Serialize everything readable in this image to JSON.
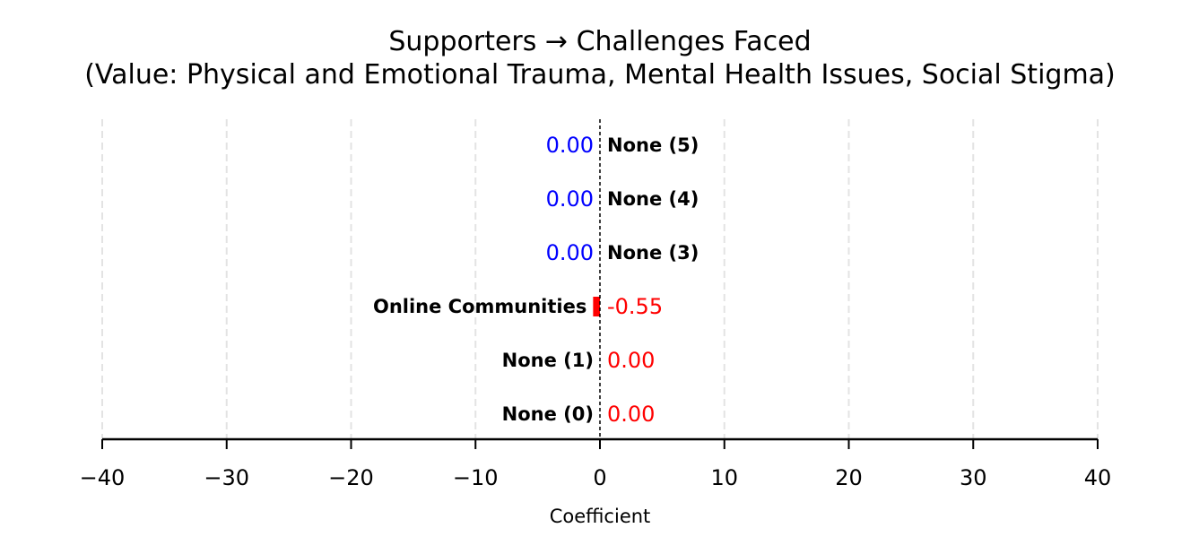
{
  "chart_data": {
    "type": "bar",
    "orientation": "horizontal",
    "title": "Supporters → Challenges Faced",
    "subtitle": "(Value: Physical and Emotional Trauma, Mental Health Issues, Social Stigma)",
    "xlabel": "Coefficient",
    "ylabel": "",
    "xlim": [
      -40,
      40
    ],
    "xticks": [
      -40,
      -30,
      -20,
      -10,
      0,
      10,
      20,
      30,
      40
    ],
    "xtick_labels": [
      "−40",
      "−30",
      "−20",
      "−10",
      "0",
      "10",
      "20",
      "30",
      "40"
    ],
    "grid": "vertical dashed",
    "categories": [
      "None (0)",
      "None (1)",
      "Online Communities",
      "None (3)",
      "None (4)",
      "None (5)"
    ],
    "values": [
      0.0,
      0.0,
      -0.55,
      0.0,
      0.0,
      0.0
    ],
    "value_labels": [
      "0.00",
      "0.00",
      "-0.55",
      "0.00",
      "0.00",
      "0.00"
    ],
    "value_colors": [
      "#ff0000",
      "#ff0000",
      "#ff0000",
      "#0000ff",
      "#0000ff",
      "#0000ff"
    ],
    "bar_color": "#ff0000",
    "zero_line": "black dashed"
  }
}
